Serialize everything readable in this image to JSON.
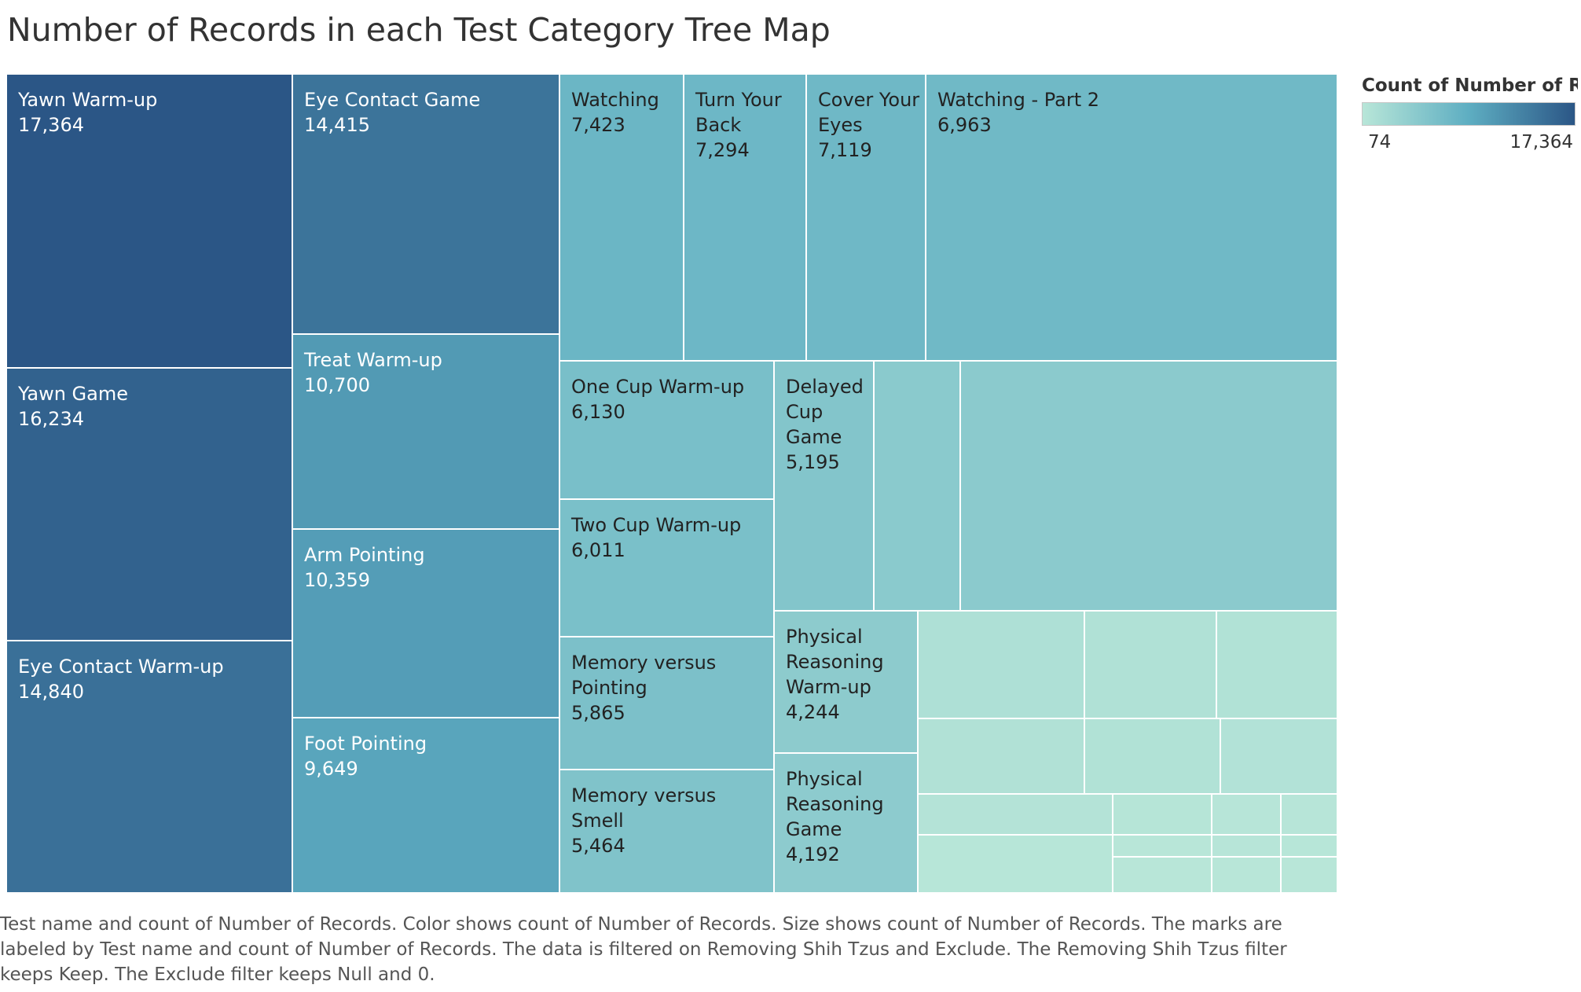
{
  "chart_data": {
    "type": "treemap",
    "title": "Number of Records in each Test Category Tree Map",
    "legend": {
      "title": "Count of Number of Rec..",
      "min": 74,
      "max": 17364,
      "min_label": "74",
      "max_label": "17,364",
      "color_low": "#b8e6d8",
      "color_mid": "#5eaec2",
      "color_high": "#2b5686",
      "placement": "top-right"
    },
    "items": [
      {
        "name": "Yawn Warm-up",
        "value": 17364,
        "label": "17,364"
      },
      {
        "name": "Yawn Game",
        "value": 16234,
        "label": "16,234"
      },
      {
        "name": "Eye Contact Warm-up",
        "value": 14840,
        "label": "14,840"
      },
      {
        "name": "Eye Contact Game",
        "value": 14415,
        "label": "14,415"
      },
      {
        "name": "Treat Warm-up",
        "value": 10700,
        "label": "10,700"
      },
      {
        "name": "Arm Pointing",
        "value": 10359,
        "label": "10,359"
      },
      {
        "name": "Foot Pointing",
        "value": 9649,
        "label": "9,649"
      },
      {
        "name": "Watching",
        "value": 7423,
        "label": "7,423"
      },
      {
        "name": "Turn Your Back",
        "value": 7294,
        "label": "7,294"
      },
      {
        "name": "Cover Your Eyes",
        "value": 7119,
        "label": "7,119"
      },
      {
        "name": "Watching - Part 2",
        "value": 6963,
        "label": "6,963"
      },
      {
        "name": "One Cup Warm-up",
        "value": 6130,
        "label": "6,130"
      },
      {
        "name": "Two Cup Warm-up",
        "value": 6011,
        "label": "6,011"
      },
      {
        "name": "Memory versus Pointing",
        "value": 5865,
        "label": "5,865"
      },
      {
        "name": "Memory versus Smell",
        "value": 5464,
        "label": "5,464"
      },
      {
        "name": "Delayed Cup Game",
        "value": 5195,
        "label": "5,195"
      },
      {
        "name": "",
        "value": 4460,
        "label": ""
      },
      {
        "name": "",
        "value": 4420,
        "label": ""
      },
      {
        "name": "Physical Reasoning Warm-up",
        "value": 4244,
        "label": "4,244"
      },
      {
        "name": "Physical Reasoning Game",
        "value": 4192,
        "label": "4,192"
      },
      {
        "name": "",
        "value": 1010,
        "label": ""
      },
      {
        "name": "",
        "value": 830,
        "label": ""
      },
      {
        "name": "",
        "value": 750,
        "label": ""
      },
      {
        "name": "",
        "value": 780,
        "label": ""
      },
      {
        "name": "",
        "value": 720,
        "label": ""
      },
      {
        "name": "",
        "value": 660,
        "label": ""
      },
      {
        "name": "",
        "value": 460,
        "label": ""
      },
      {
        "name": "",
        "value": 300,
        "label": ""
      },
      {
        "name": "",
        "value": 190,
        "label": ""
      },
      {
        "name": "",
        "value": 180,
        "label": ""
      },
      {
        "name": "",
        "value": 150,
        "label": ""
      },
      {
        "name": "",
        "value": 120,
        "label": ""
      },
      {
        "name": "",
        "value": 160,
        "label": ""
      },
      {
        "name": "",
        "value": 140,
        "label": ""
      },
      {
        "name": "",
        "value": 110,
        "label": ""
      },
      {
        "name": "",
        "value": 74,
        "label": ""
      },
      {
        "name": "",
        "value": 80,
        "label": ""
      }
    ]
  },
  "caption": "Test name and count of Number of Records.  Color shows count of Number of Records.  Size shows count of Number of Records.  The marks are labeled by Test name and count of Number of Records. The data is filtered on Removing Shih Tzus and Exclude. The Removing Shih Tzus filter keeps Keep. The Exclude filter keeps Null and 0."
}
